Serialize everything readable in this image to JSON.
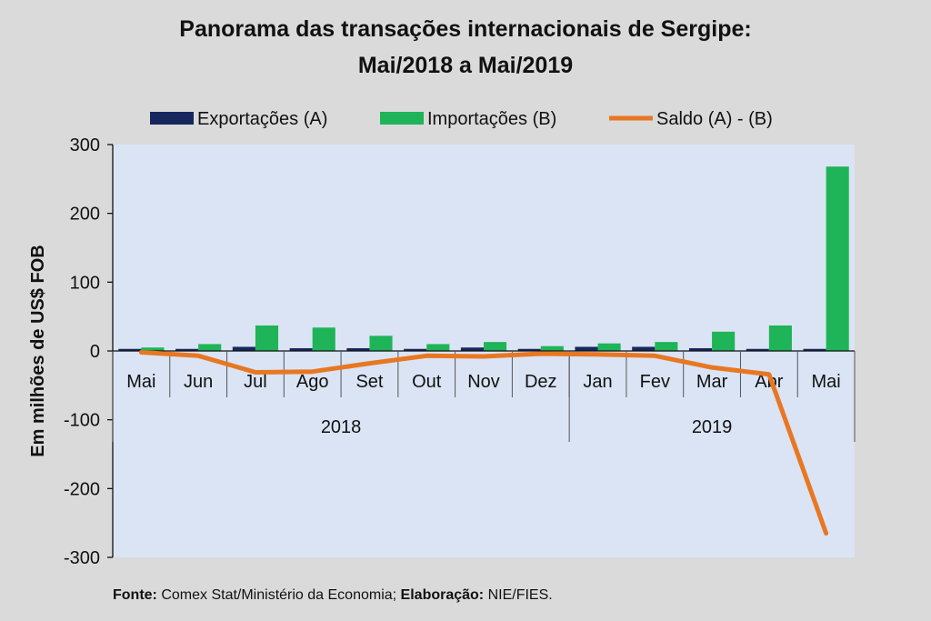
{
  "chart_data": {
    "type": "bar",
    "title_line1": "Panorama  das transações internacionais de Sergipe:",
    "title_line2": "Mai/2018 a Mai/2019",
    "ylabel": "Em milhões de US$ FOB",
    "ylim": [
      -300,
      300
    ],
    "yticks": [
      "300",
      "200",
      "100",
      "0",
      "-100",
      "-200",
      "-300"
    ],
    "ytick_values": [
      300,
      200,
      100,
      0,
      -100,
      -200,
      -300
    ],
    "categories": [
      "Mai",
      "Jun",
      "Jul",
      "Ago",
      "Set",
      "Out",
      "Nov",
      "Dez",
      "Jan",
      "Fev",
      "Mar",
      "Abr",
      "Mai"
    ],
    "year_groups": [
      {
        "label": "2018",
        "count": 8
      },
      {
        "label": "2019",
        "count": 5
      }
    ],
    "series": [
      {
        "name": "Exportações (A)",
        "type": "bar",
        "color": "#16275e",
        "values": [
          3,
          3,
          6,
          4,
          4,
          3,
          5,
          3,
          6,
          6,
          4,
          3,
          3
        ]
      },
      {
        "name": "Importações (B)",
        "type": "bar",
        "color": "#1fb457",
        "values": [
          5,
          10,
          37,
          34,
          22,
          10,
          13,
          7,
          11,
          13,
          28,
          37,
          268
        ]
      },
      {
        "name": "Saldo (A) - (B)",
        "type": "line",
        "color": "#e87722",
        "values": [
          -2,
          -7,
          -31,
          -30,
          -18,
          -7,
          -8,
          -4,
          -5,
          -7,
          -24,
          -34,
          -265
        ]
      }
    ],
    "legend_position": "top",
    "grid": false
  },
  "source": {
    "label1": "Fonte:",
    "text1": " Comex Stat/Ministério da Economia; ",
    "label2": "Elaboração:",
    "text2": " NIE/FIES."
  }
}
